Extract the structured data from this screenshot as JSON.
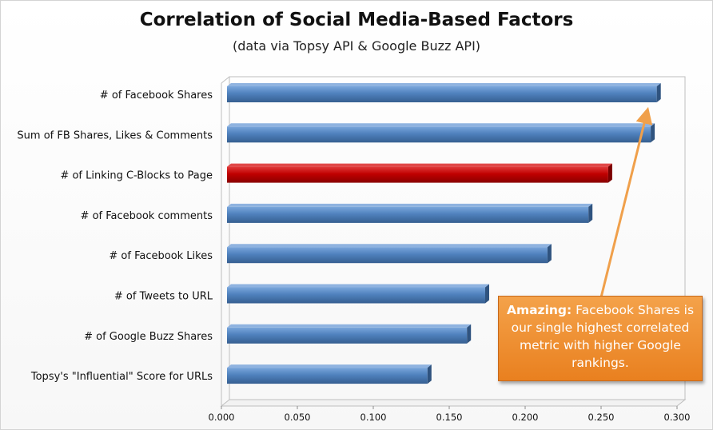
{
  "chart_data": {
    "type": "bar",
    "orientation": "horizontal",
    "title": "Correlation of Social Media-Based Factors",
    "subtitle": "(data via Topsy API & Google Buzz API)",
    "categories": [
      "# of Facebook Shares",
      "Sum of FB Shares, Likes & Comments",
      "# of Linking C-Blocks to Page",
      "# of Facebook comments",
      "# of Facebook Likes",
      "# of Tweets to URL",
      "# of Google Buzz Shares",
      "Topsy's \"Influential\" Score for URLs"
    ],
    "values": [
      0.283,
      0.279,
      0.251,
      0.238,
      0.211,
      0.17,
      0.158,
      0.132
    ],
    "highlight_index": 2,
    "colors": {
      "bar": "#4f81bd",
      "highlight": "#c00000",
      "callout": "#ee8a2a"
    },
    "xlim": [
      0,
      0.3
    ],
    "xticks": [
      "0.000",
      "0.050",
      "0.100",
      "0.150",
      "0.200",
      "0.250",
      "0.300"
    ],
    "grid": false,
    "annotation": {
      "bold_text": "Amazing:",
      "text": "Facebook Shares is our single highest correlated metric with higher Google rankings.",
      "points_to_index": 0
    }
  }
}
